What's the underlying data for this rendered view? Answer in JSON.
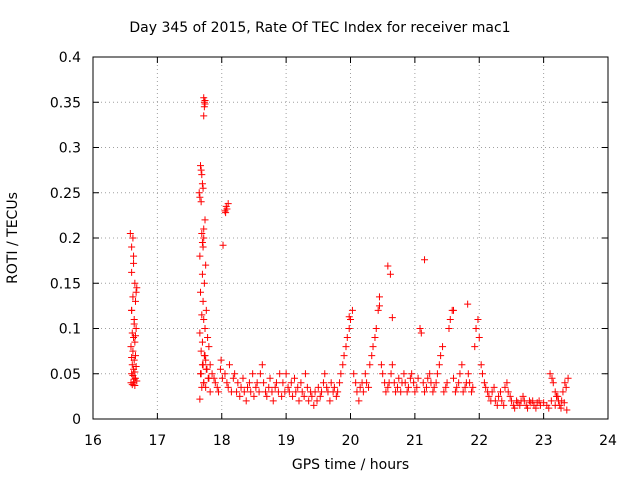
{
  "chart_data": {
    "type": "scatter",
    "title": "Day 345 of 2015, Rate Of TEC Index for receiver mac1",
    "xlabel": "GPS time / hours",
    "ylabel": "ROTI / TECUs",
    "xlim": [
      16,
      24
    ],
    "ylim": [
      0,
      0.4
    ],
    "xticks": [
      16,
      17,
      18,
      19,
      20,
      21,
      22,
      23,
      24
    ],
    "xtick_labels": [
      "16",
      "17",
      "18",
      "19",
      "20",
      "21",
      "22",
      "23",
      "24"
    ],
    "yticks": [
      0,
      0.05,
      0.1,
      0.15,
      0.2,
      0.25,
      0.3,
      0.35,
      0.4
    ],
    "ytick_labels": [
      "0",
      "0.05",
      "0.1",
      "0.15",
      "0.2",
      "0.25",
      "0.3",
      "0.35",
      "0.4"
    ],
    "grid": true,
    "marker": "+",
    "color": "#ff0000",
    "series": [
      {
        "name": "ROTI",
        "x": [
          16.58,
          16.6,
          16.62,
          16.63,
          16.65,
          16.66,
          16.68,
          16.6,
          16.64,
          16.67,
          16.61,
          16.63,
          16.65,
          16.59,
          16.62,
          16.66,
          16.6,
          16.64,
          16.61,
          16.67,
          16.63,
          16.65,
          16.6,
          16.62,
          16.66,
          16.64,
          16.68,
          16.59,
          16.63,
          16.61,
          16.65,
          16.6,
          16.62,
          16.67,
          16.64,
          16.66,
          16.6,
          16.63,
          17.65,
          17.66,
          17.67,
          17.68,
          17.69,
          17.7,
          17.71,
          17.68,
          17.72,
          17.74,
          17.66,
          17.75,
          17.7,
          17.73,
          17.67,
          17.71,
          17.76,
          17.69,
          17.72,
          17.74,
          17.66,
          17.78,
          17.7,
          17.8,
          17.68,
          17.73,
          17.75,
          17.71,
          17.77,
          17.67,
          17.79,
          17.72,
          17.69,
          17.82,
          17.74,
          17.7,
          17.76,
          17.68,
          17.8,
          17.72,
          17.66,
          17.75,
          17.82,
          17.85,
          17.88,
          17.9,
          17.93,
          17.95,
          17.98,
          17.99,
          18.01,
          18.05,
          18.08,
          18.1,
          18.12,
          18.15,
          18.18,
          18.2,
          18.23,
          18.25,
          18.28,
          18.3,
          18.33,
          18.35,
          18.38,
          18.4,
          18.43,
          18.45,
          18.48,
          18.5,
          18.53,
          18.55,
          18.58,
          18.6,
          18.63,
          18.65,
          18.68,
          18.7,
          18.73,
          18.75,
          18.78,
          18.8,
          18.83,
          18.85,
          18.88,
          18.9,
          18.93,
          18.95,
          18.98,
          19.0,
          19.03,
          19.05,
          19.08,
          19.1,
          19.13,
          19.15,
          19.18,
          19.2,
          19.23,
          19.25,
          19.28,
          19.3,
          19.33,
          19.35,
          19.38,
          19.4,
          19.43,
          19.45,
          19.48,
          19.5,
          19.53,
          19.55,
          19.58,
          19.6,
          19.63,
          19.65,
          19.68,
          19.7,
          19.73,
          19.75,
          19.78,
          19.8,
          19.83,
          19.85,
          19.88,
          19.9,
          19.93,
          19.95,
          19.98,
          20.0,
          20.03,
          20.05,
          20.08,
          20.1,
          20.13,
          20.15,
          20.18,
          20.2,
          20.23,
          20.25,
          20.28,
          20.3,
          20.33,
          20.35,
          20.38,
          20.4,
          20.43,
          20.45,
          20.48,
          20.5,
          20.53,
          20.55,
          20.58,
          20.6,
          20.63,
          20.65,
          20.68,
          20.7,
          20.73,
          20.75,
          20.78,
          20.8,
          20.83,
          20.85,
          20.88,
          20.9,
          20.93,
          20.95,
          20.98,
          21.0,
          21.03,
          21.05,
          21.08,
          21.1,
          21.13,
          21.15,
          21.18,
          21.2,
          21.23,
          21.25,
          21.28,
          21.3,
          21.33,
          21.35,
          21.38,
          21.4,
          21.43,
          21.45,
          21.48,
          21.5,
          21.53,
          21.55,
          21.58,
          21.6,
          21.63,
          21.65,
          21.68,
          21.7,
          21.73,
          21.75,
          21.78,
          21.8,
          21.83,
          21.85,
          21.88,
          21.9,
          21.93,
          21.95,
          21.98,
          22.0,
          22.03,
          22.05,
          22.08,
          22.1,
          22.13,
          22.15,
          22.18,
          22.2,
          22.23,
          22.25,
          22.28,
          22.3,
          22.33,
          22.35,
          22.38,
          22.4,
          22.43,
          22.45,
          22.48,
          22.5,
          22.53,
          22.55,
          22.58,
          22.6,
          22.63,
          22.65,
          22.68,
          22.7,
          22.73,
          22.75,
          22.78,
          22.8,
          22.83,
          22.85,
          22.88,
          22.9,
          22.93,
          22.95,
          23.0,
          23.05,
          23.08,
          23.1,
          23.13,
          23.15,
          23.18,
          23.2,
          23.23,
          23.25,
          23.28,
          23.3,
          23.33,
          23.35,
          23.38,
          23.12,
          23.18,
          23.22,
          23.27,
          23.32,
          23.36,
          17.72,
          17.73,
          17.73,
          17.74,
          17.72,
          17.74,
          17.7,
          17.69,
          17.71,
          17.72,
          18.05,
          18.07,
          18.08,
          18.1,
          18.06,
          18.02,
          21.15,
          20.58,
          20.62,
          20.45,
          21.82,
          21.6,
          20.65,
          19.98
        ],
        "y": [
          0.205,
          0.19,
          0.2,
          0.18,
          0.15,
          0.13,
          0.145,
          0.12,
          0.11,
          0.1,
          0.095,
          0.09,
          0.085,
          0.08,
          0.075,
          0.07,
          0.068,
          0.065,
          0.06,
          0.058,
          0.055,
          0.052,
          0.05,
          0.048,
          0.045,
          0.044,
          0.042,
          0.04,
          0.04,
          0.038,
          0.037,
          0.12,
          0.135,
          0.14,
          0.105,
          0.092,
          0.162,
          0.172,
          0.25,
          0.245,
          0.28,
          0.275,
          0.27,
          0.26,
          0.255,
          0.24,
          0.2,
          0.22,
          0.18,
          0.17,
          0.16,
          0.15,
          0.14,
          0.13,
          0.12,
          0.115,
          0.11,
          0.1,
          0.095,
          0.09,
          0.085,
          0.08,
          0.075,
          0.07,
          0.065,
          0.06,
          0.055,
          0.05,
          0.045,
          0.04,
          0.035,
          0.03,
          0.07,
          0.06,
          0.055,
          0.05,
          0.045,
          0.04,
          0.022,
          0.035,
          0.06,
          0.05,
          0.045,
          0.04,
          0.035,
          0.03,
          0.055,
          0.065,
          0.045,
          0.05,
          0.04,
          0.035,
          0.06,
          0.03,
          0.045,
          0.05,
          0.03,
          0.04,
          0.025,
          0.035,
          0.045,
          0.03,
          0.02,
          0.035,
          0.04,
          0.03,
          0.05,
          0.025,
          0.035,
          0.04,
          0.03,
          0.05,
          0.06,
          0.04,
          0.03,
          0.025,
          0.035,
          0.045,
          0.03,
          0.02,
          0.035,
          0.04,
          0.03,
          0.05,
          0.025,
          0.04,
          0.03,
          0.05,
          0.035,
          0.03,
          0.04,
          0.025,
          0.045,
          0.03,
          0.035,
          0.02,
          0.04,
          0.03,
          0.025,
          0.05,
          0.035,
          0.02,
          0.03,
          0.025,
          0.015,
          0.03,
          0.02,
          0.035,
          0.025,
          0.03,
          0.04,
          0.05,
          0.035,
          0.03,
          0.02,
          0.04,
          0.03,
          0.035,
          0.025,
          0.03,
          0.04,
          0.05,
          0.06,
          0.07,
          0.08,
          0.09,
          0.1,
          0.11,
          0.12,
          0.05,
          0.04,
          0.03,
          0.02,
          0.035,
          0.04,
          0.03,
          0.05,
          0.04,
          0.035,
          0.06,
          0.07,
          0.08,
          0.09,
          0.1,
          0.12,
          0.125,
          0.06,
          0.05,
          0.04,
          0.03,
          0.035,
          0.04,
          0.05,
          0.06,
          0.04,
          0.03,
          0.035,
          0.045,
          0.03,
          0.04,
          0.05,
          0.04,
          0.03,
          0.035,
          0.045,
          0.05,
          0.04,
          0.03,
          0.035,
          0.045,
          0.1,
          0.095,
          0.04,
          0.03,
          0.035,
          0.045,
          0.05,
          0.04,
          0.03,
          0.035,
          0.04,
          0.05,
          0.06,
          0.07,
          0.08,
          0.03,
          0.035,
          0.04,
          0.1,
          0.11,
          0.12,
          0.045,
          0.03,
          0.035,
          0.04,
          0.05,
          0.06,
          0.03,
          0.035,
          0.04,
          0.05,
          0.04,
          0.03,
          0.035,
          0.08,
          0.1,
          0.11,
          0.09,
          0.06,
          0.05,
          0.04,
          0.035,
          0.03,
          0.025,
          0.02,
          0.03,
          0.035,
          0.02,
          0.015,
          0.025,
          0.03,
          0.02,
          0.015,
          0.035,
          0.04,
          0.03,
          0.025,
          0.02,
          0.015,
          0.012,
          0.02,
          0.018,
          0.015,
          0.02,
          0.025,
          0.02,
          0.015,
          0.012,
          0.02,
          0.018,
          0.02,
          0.015,
          0.012,
          0.018,
          0.02,
          0.015,
          0.018,
          0.015,
          0.012,
          0.05,
          0.045,
          0.04,
          0.03,
          0.025,
          0.02,
          0.015,
          0.02,
          0.03,
          0.04,
          0.035,
          0.045,
          0.02,
          0.015,
          0.025,
          0.012,
          0.018,
          0.01,
          0.355,
          0.35,
          0.345,
          0.352,
          0.335,
          0.348,
          0.195,
          0.205,
          0.19,
          0.21,
          0.23,
          0.235,
          0.232,
          0.238,
          0.228,
          0.192,
          0.176,
          0.169,
          0.16,
          0.135,
          0.127,
          0.12,
          0.112,
          0.113
        ]
      }
    ]
  }
}
